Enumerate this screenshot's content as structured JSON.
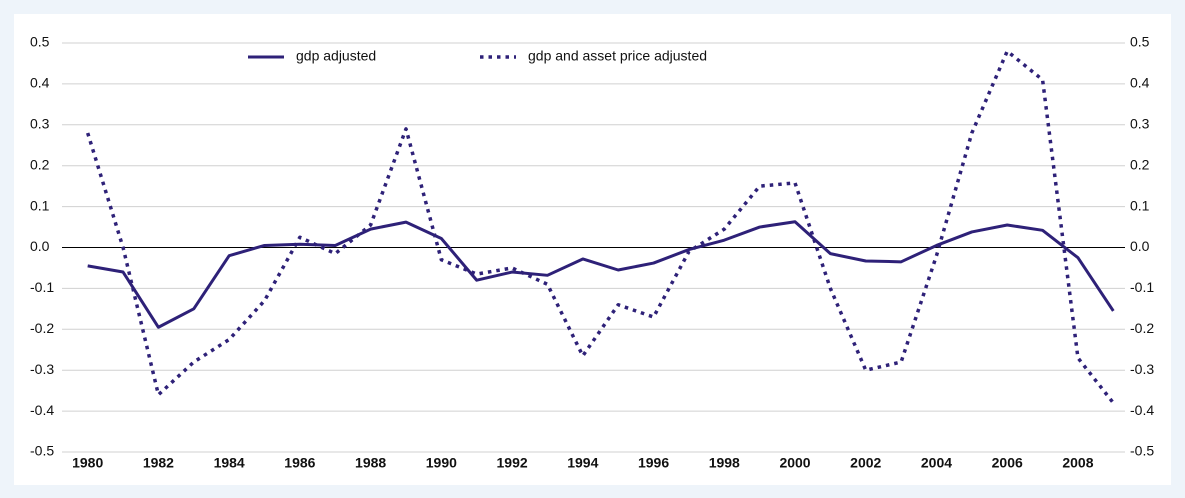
{
  "chart_data": {
    "type": "line",
    "categories": [
      "1980",
      null,
      "1982",
      null,
      "1984",
      null,
      "1986",
      null,
      "1988",
      null,
      "1990",
      null,
      "1992",
      null,
      "1994",
      null,
      "1996",
      null,
      "1998",
      null,
      "2000",
      null,
      "2002",
      null,
      "2004",
      null,
      "2006",
      null,
      "2008",
      null
    ],
    "series": [
      {
        "name": "gdp adjusted",
        "color": "#2e2178",
        "style": "solid",
        "values": [
          -0.045,
          -0.06,
          -0.195,
          -0.15,
          -0.02,
          0.005,
          0.008,
          0.005,
          0.045,
          0.062,
          0.022,
          -0.08,
          -0.06,
          -0.068,
          -0.028,
          -0.055,
          -0.038,
          -0.005,
          0.018,
          0.05,
          0.063,
          -0.015,
          -0.033,
          -0.035,
          0.005,
          0.038,
          0.055,
          0.042,
          -0.025,
          -0.155
        ]
      },
      {
        "name": "gdp and asset price adjusted",
        "color": "#2e2178",
        "style": "dotted",
        "values": [
          0.28,
          0.0,
          -0.36,
          -0.28,
          -0.225,
          -0.13,
          0.025,
          -0.015,
          0.055,
          0.29,
          -0.03,
          -0.065,
          -0.05,
          -0.09,
          -0.265,
          -0.14,
          -0.17,
          -0.01,
          0.045,
          0.15,
          0.158,
          -0.1,
          -0.3,
          -0.28,
          -0.02,
          0.28,
          0.48,
          0.41,
          -0.27,
          -0.38
        ]
      }
    ],
    "ylim": [
      -0.5,
      0.5
    ],
    "yticks": [
      -0.5,
      -0.4,
      -0.3,
      -0.2,
      -0.1,
      {
        "value": 0,
        "label": "0.0"
      },
      0.1,
      0.2,
      0.3,
      0.4,
      0.5
    ],
    "grid": true,
    "legend": "top"
  }
}
